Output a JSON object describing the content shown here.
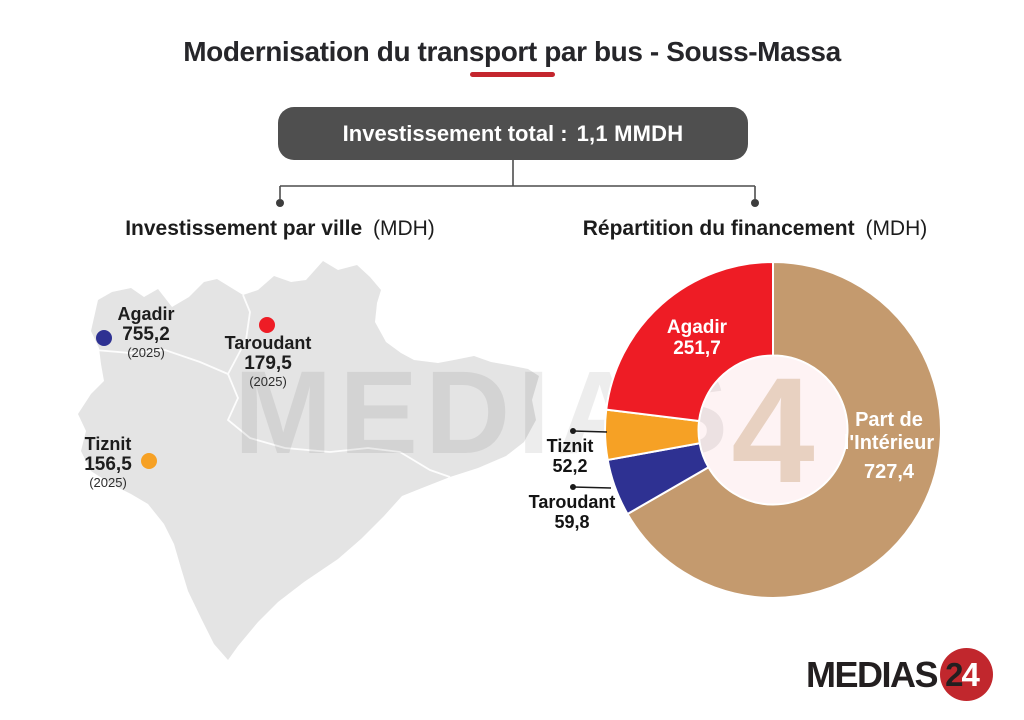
{
  "title": "Modernisation du transport par bus - Souss-Massa",
  "total_box": {
    "label": "Investissement total :",
    "value": "1,1 MMDH"
  },
  "sections": {
    "left": {
      "title": "Investissement par ville",
      "unit": "(MDH)"
    },
    "right": {
      "title": "Répartition du financement",
      "unit": "(MDH)"
    }
  },
  "chart_data": [
    {
      "type": "pie",
      "subtype": "donut",
      "title": "Répartition du financement (MDH)",
      "unit": "MDH",
      "total": 1091.1,
      "start_angle_deg": 0,
      "direction": "clockwise",
      "slices": [
        {
          "label": "Part de l'Intérieur",
          "label_line1": "Part de",
          "label_line2": "l'Intérieur",
          "value": 727.4,
          "display": "727,4",
          "color": "#c49a6e",
          "label_position": "inside-right"
        },
        {
          "label": "Taroudant",
          "value": 59.8,
          "display": "59,8",
          "color": "#2e3192",
          "label_position": "outside-left"
        },
        {
          "label": "Tiznit",
          "value": 52.2,
          "display": "52,2",
          "color": "#f6a125",
          "label_position": "outside-left"
        },
        {
          "label": "Agadir",
          "value": 251.7,
          "display": "251,7",
          "color": "#ee1c25",
          "label_position": "inside-top-left"
        }
      ]
    },
    {
      "type": "scatter",
      "subtype": "labeled-map",
      "title": "Investissement par ville (MDH)",
      "unit": "MDH",
      "region": "Souss-Massa",
      "points": [
        {
          "label": "Agadir",
          "value": 755.2,
          "display": "755,2",
          "year": "(2025)",
          "color": "#2e3192"
        },
        {
          "label": "Taroudant",
          "value": 179.5,
          "display": "179,5",
          "year": "(2025)",
          "color": "#ee1c25"
        },
        {
          "label": "Tiznit",
          "value": 156.5,
          "display": "156,5",
          "year": "(2025)",
          "color": "#f6a125"
        }
      ]
    }
  ],
  "watermark": {
    "text": "MEDIAS",
    "number": "4"
  },
  "logo": {
    "text": "MEDIAS",
    "digit_dark": "2",
    "digit_light": "4"
  },
  "colors": {
    "accent_red": "#c4262e",
    "box_bg": "#4f4f4f",
    "map_fill": "#e4e4e4",
    "connector": "#4d4d4d",
    "logo_red": "#c1272d"
  }
}
